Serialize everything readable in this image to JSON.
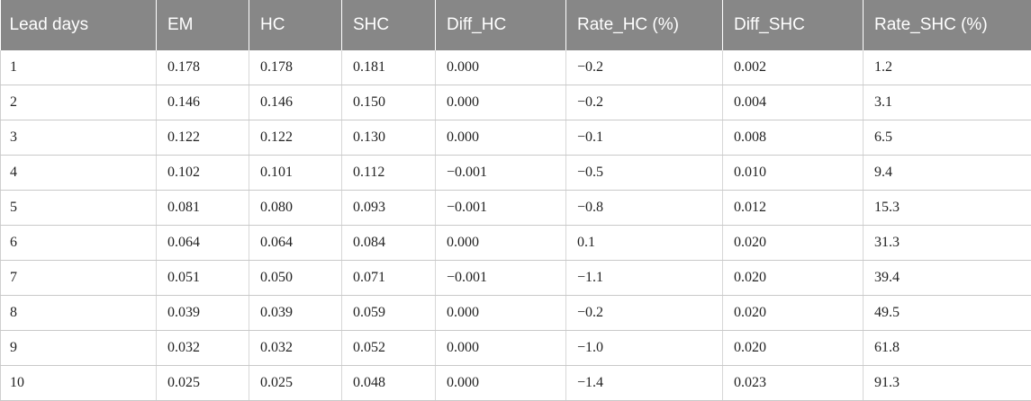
{
  "table": {
    "headers": [
      "Lead days",
      "EM",
      "HC",
      "SHC",
      "Diff_HC",
      "Rate_HC (%)",
      "Diff_SHC",
      "Rate_SHC (%)"
    ],
    "rows": [
      [
        "1",
        "0.178",
        "0.178",
        "0.181",
        "0.000",
        "−0.2",
        "0.002",
        "1.2"
      ],
      [
        "2",
        "0.146",
        "0.146",
        "0.150",
        "0.000",
        "−0.2",
        "0.004",
        "3.1"
      ],
      [
        "3",
        "0.122",
        "0.122",
        "0.130",
        "0.000",
        "−0.1",
        "0.008",
        "6.5"
      ],
      [
        "4",
        "0.102",
        "0.101",
        "0.112",
        "−0.001",
        "−0.5",
        "0.010",
        "9.4"
      ],
      [
        "5",
        "0.081",
        "0.080",
        "0.093",
        "−0.001",
        "−0.8",
        "0.012",
        "15.3"
      ],
      [
        "6",
        "0.064",
        "0.064",
        "0.084",
        "0.000",
        "0.1",
        "0.020",
        "31.3"
      ],
      [
        "7",
        "0.051",
        "0.050",
        "0.071",
        "−0.001",
        "−1.1",
        "0.020",
        "39.4"
      ],
      [
        "8",
        "0.039",
        "0.039",
        "0.059",
        "0.000",
        "−0.2",
        "0.020",
        "49.5"
      ],
      [
        "9",
        "0.032",
        "0.032",
        "0.052",
        "0.000",
        "−1.0",
        "0.020",
        "61.8"
      ],
      [
        "10",
        "0.025",
        "0.025",
        "0.048",
        "0.000",
        "−1.4",
        "0.023",
        "91.3"
      ]
    ]
  }
}
